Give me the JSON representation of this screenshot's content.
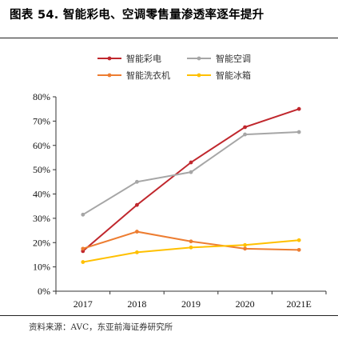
{
  "title": "图表 54. 智能彩电、空调零售量渗透率逐年提升",
  "source": "资料来源：AVC，东亚前海证券研究所",
  "chart_data": {
    "type": "line",
    "categories": [
      "2017",
      "2018",
      "2019",
      "2020",
      "2021E"
    ],
    "ylim": [
      0,
      80
    ],
    "yticks": [
      0,
      10,
      20,
      30,
      40,
      50,
      60,
      70,
      80
    ],
    "ytick_labels": [
      "0%",
      "10%",
      "20%",
      "30%",
      "40%",
      "50%",
      "60%",
      "70%",
      "80%"
    ],
    "grid": false,
    "legend": "top",
    "series": [
      {
        "name": "智能彩电",
        "color": "#c0272d",
        "values": [
          16.5,
          35.5,
          53,
          67.5,
          75
        ]
      },
      {
        "name": "智能空调",
        "color": "#a6a6a6",
        "values": [
          31.5,
          45,
          49,
          64.5,
          65.5
        ]
      },
      {
        "name": "智能洗衣机",
        "color": "#ed7d31",
        "values": [
          17.5,
          24.5,
          20.5,
          17.5,
          17
        ]
      },
      {
        "name": "智能冰箱",
        "color": "#ffc000",
        "values": [
          12,
          16,
          18,
          19,
          21
        ]
      }
    ]
  }
}
